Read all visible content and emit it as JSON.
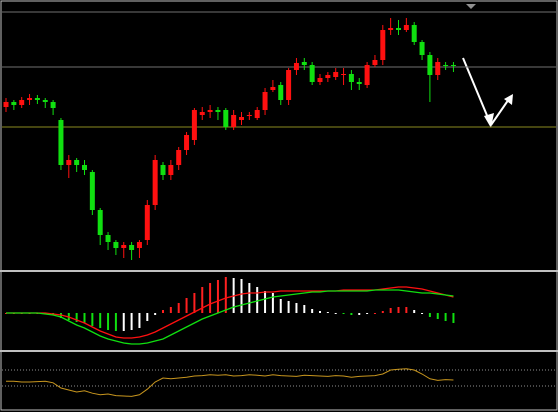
{
  "chart_data": [
    {
      "type": "candlestick",
      "open": [
        163,
        168,
        165,
        170,
        172,
        170,
        168,
        150,
        105,
        110,
        105,
        98,
        60,
        35,
        28,
        22,
        25,
        22,
        30,
        65,
        105,
        95,
        105,
        120,
        130,
        155,
        158,
        160,
        160,
        143,
        150,
        155,
        152,
        160,
        180,
        185,
        170,
        200,
        208,
        205,
        188,
        192,
        193,
        195,
        196,
        188,
        185,
        205,
        210,
        240,
        242,
        240,
        245,
        228,
        215,
        195,
        205,
        205
      ],
      "close": [
        168,
        165,
        170,
        172,
        170,
        168,
        162,
        105,
        110,
        105,
        100,
        60,
        35,
        28,
        22,
        25,
        20,
        28,
        65,
        110,
        95,
        105,
        120,
        135,
        160,
        158,
        160,
        158,
        143,
        155,
        153,
        155,
        160,
        178,
        183,
        170,
        200,
        207,
        205,
        188,
        192,
        195,
        198,
        196,
        188,
        186,
        205,
        210,
        240,
        242,
        240,
        245,
        228,
        215,
        195,
        208,
        204,
        204
      ],
      "high": [
        172,
        170,
        173,
        176,
        175,
        172,
        170,
        152,
        115,
        112,
        110,
        100,
        62,
        38,
        30,
        28,
        28,
        30,
        70,
        115,
        108,
        110,
        123,
        138,
        162,
        163,
        165,
        163,
        162,
        160,
        158,
        158,
        163,
        182,
        190,
        188,
        202,
        212,
        212,
        208,
        196,
        198,
        202,
        202,
        200,
        192,
        208,
        215,
        245,
        252,
        250,
        252,
        248,
        230,
        218,
        212,
        208,
        208
      ],
      "low": [
        158,
        160,
        162,
        165,
        166,
        162,
        155,
        100,
        92,
        98,
        95,
        55,
        25,
        20,
        15,
        12,
        10,
        12,
        25,
        60,
        90,
        90,
        100,
        115,
        125,
        150,
        152,
        150,
        140,
        140,
        145,
        150,
        150,
        155,
        178,
        165,
        165,
        195,
        200,
        185,
        185,
        188,
        190,
        185,
        180,
        180,
        182,
        203,
        205,
        235,
        235,
        238,
        225,
        210,
        168,
        190,
        200,
        198
      ],
      "ylim": [
        0,
        270
      ],
      "up_color": "#ff1010",
      "down_color": "#10e010",
      "hlines": [
        {
          "value": 258,
          "color": "#707070"
        },
        {
          "value": 203,
          "color": "#707070"
        },
        {
          "value": 143,
          "color": "#8a8a20"
        }
      ]
    },
    {
      "type": "macd",
      "histogram": [
        0,
        0,
        0,
        0,
        0,
        -1,
        -2,
        -5,
        -7,
        -9,
        -10,
        -13,
        -15,
        -17,
        -18,
        -18,
        -17,
        -15,
        -8,
        -2,
        3,
        6,
        10,
        15,
        20,
        26,
        30,
        33,
        36,
        35,
        34,
        30,
        26,
        22,
        20,
        14,
        12,
        10,
        8,
        4,
        2,
        1,
        0,
        -1,
        -2,
        -2,
        -1,
        0,
        2,
        5,
        6,
        6,
        3,
        0,
        -4,
        -6,
        -8,
        -10
      ],
      "hist_colors": {
        "up_pos": "#ff2020",
        "down_pos": "#ffffff",
        "up_neg": "#ffffff",
        "down_neg": "#10e010"
      },
      "macd": {
        "color": "#10e010",
        "values": [
          0,
          0,
          0,
          0,
          0,
          -1,
          -2,
          -4,
          -8,
          -12,
          -15,
          -19,
          -23,
          -26,
          -28,
          -30,
          -31,
          -31,
          -30,
          -28,
          -26,
          -22,
          -18,
          -14,
          -10,
          -6,
          -3,
          0,
          3,
          6,
          8,
          10,
          12,
          14,
          16,
          17,
          18,
          19,
          20,
          21,
          21,
          22,
          22,
          22,
          22,
          22,
          22,
          23,
          23,
          23,
          23,
          22,
          21,
          20,
          20,
          19,
          18,
          17
        ]
      },
      "signal": {
        "color": "#ff1010",
        "values": [
          0,
          0,
          0,
          0,
          0,
          0,
          -1,
          -2,
          -4,
          -7,
          -10,
          -14,
          -18,
          -21,
          -24,
          -25,
          -25,
          -24,
          -22,
          -19,
          -15,
          -11,
          -7,
          -3,
          1,
          5,
          9,
          12,
          15,
          17,
          19,
          20,
          20,
          21,
          21,
          22,
          22,
          22,
          22,
          22,
          22,
          22,
          22,
          23,
          23,
          23,
          23,
          23,
          24,
          25,
          26,
          26,
          25,
          24,
          22,
          20,
          18,
          16
        ]
      },
      "ylim": [
        -36,
        36
      ]
    },
    {
      "type": "line",
      "values": [
        42,
        42,
        40,
        40,
        41,
        42,
        38,
        25,
        20,
        15,
        18,
        12,
        8,
        10,
        6,
        5,
        4,
        8,
        22,
        40,
        50,
        48,
        50,
        52,
        55,
        56,
        58,
        57,
        58,
        55,
        56,
        58,
        57,
        55,
        58,
        56,
        55,
        54,
        57,
        56,
        55,
        54,
        56,
        55,
        52,
        54,
        55,
        56,
        60,
        70,
        72,
        73,
        70,
        60,
        48,
        44,
        46,
        45
      ],
      "color": "#c8961e",
      "ylim": [
        0,
        100
      ],
      "levels": [
        70,
        30
      ]
    }
  ]
}
